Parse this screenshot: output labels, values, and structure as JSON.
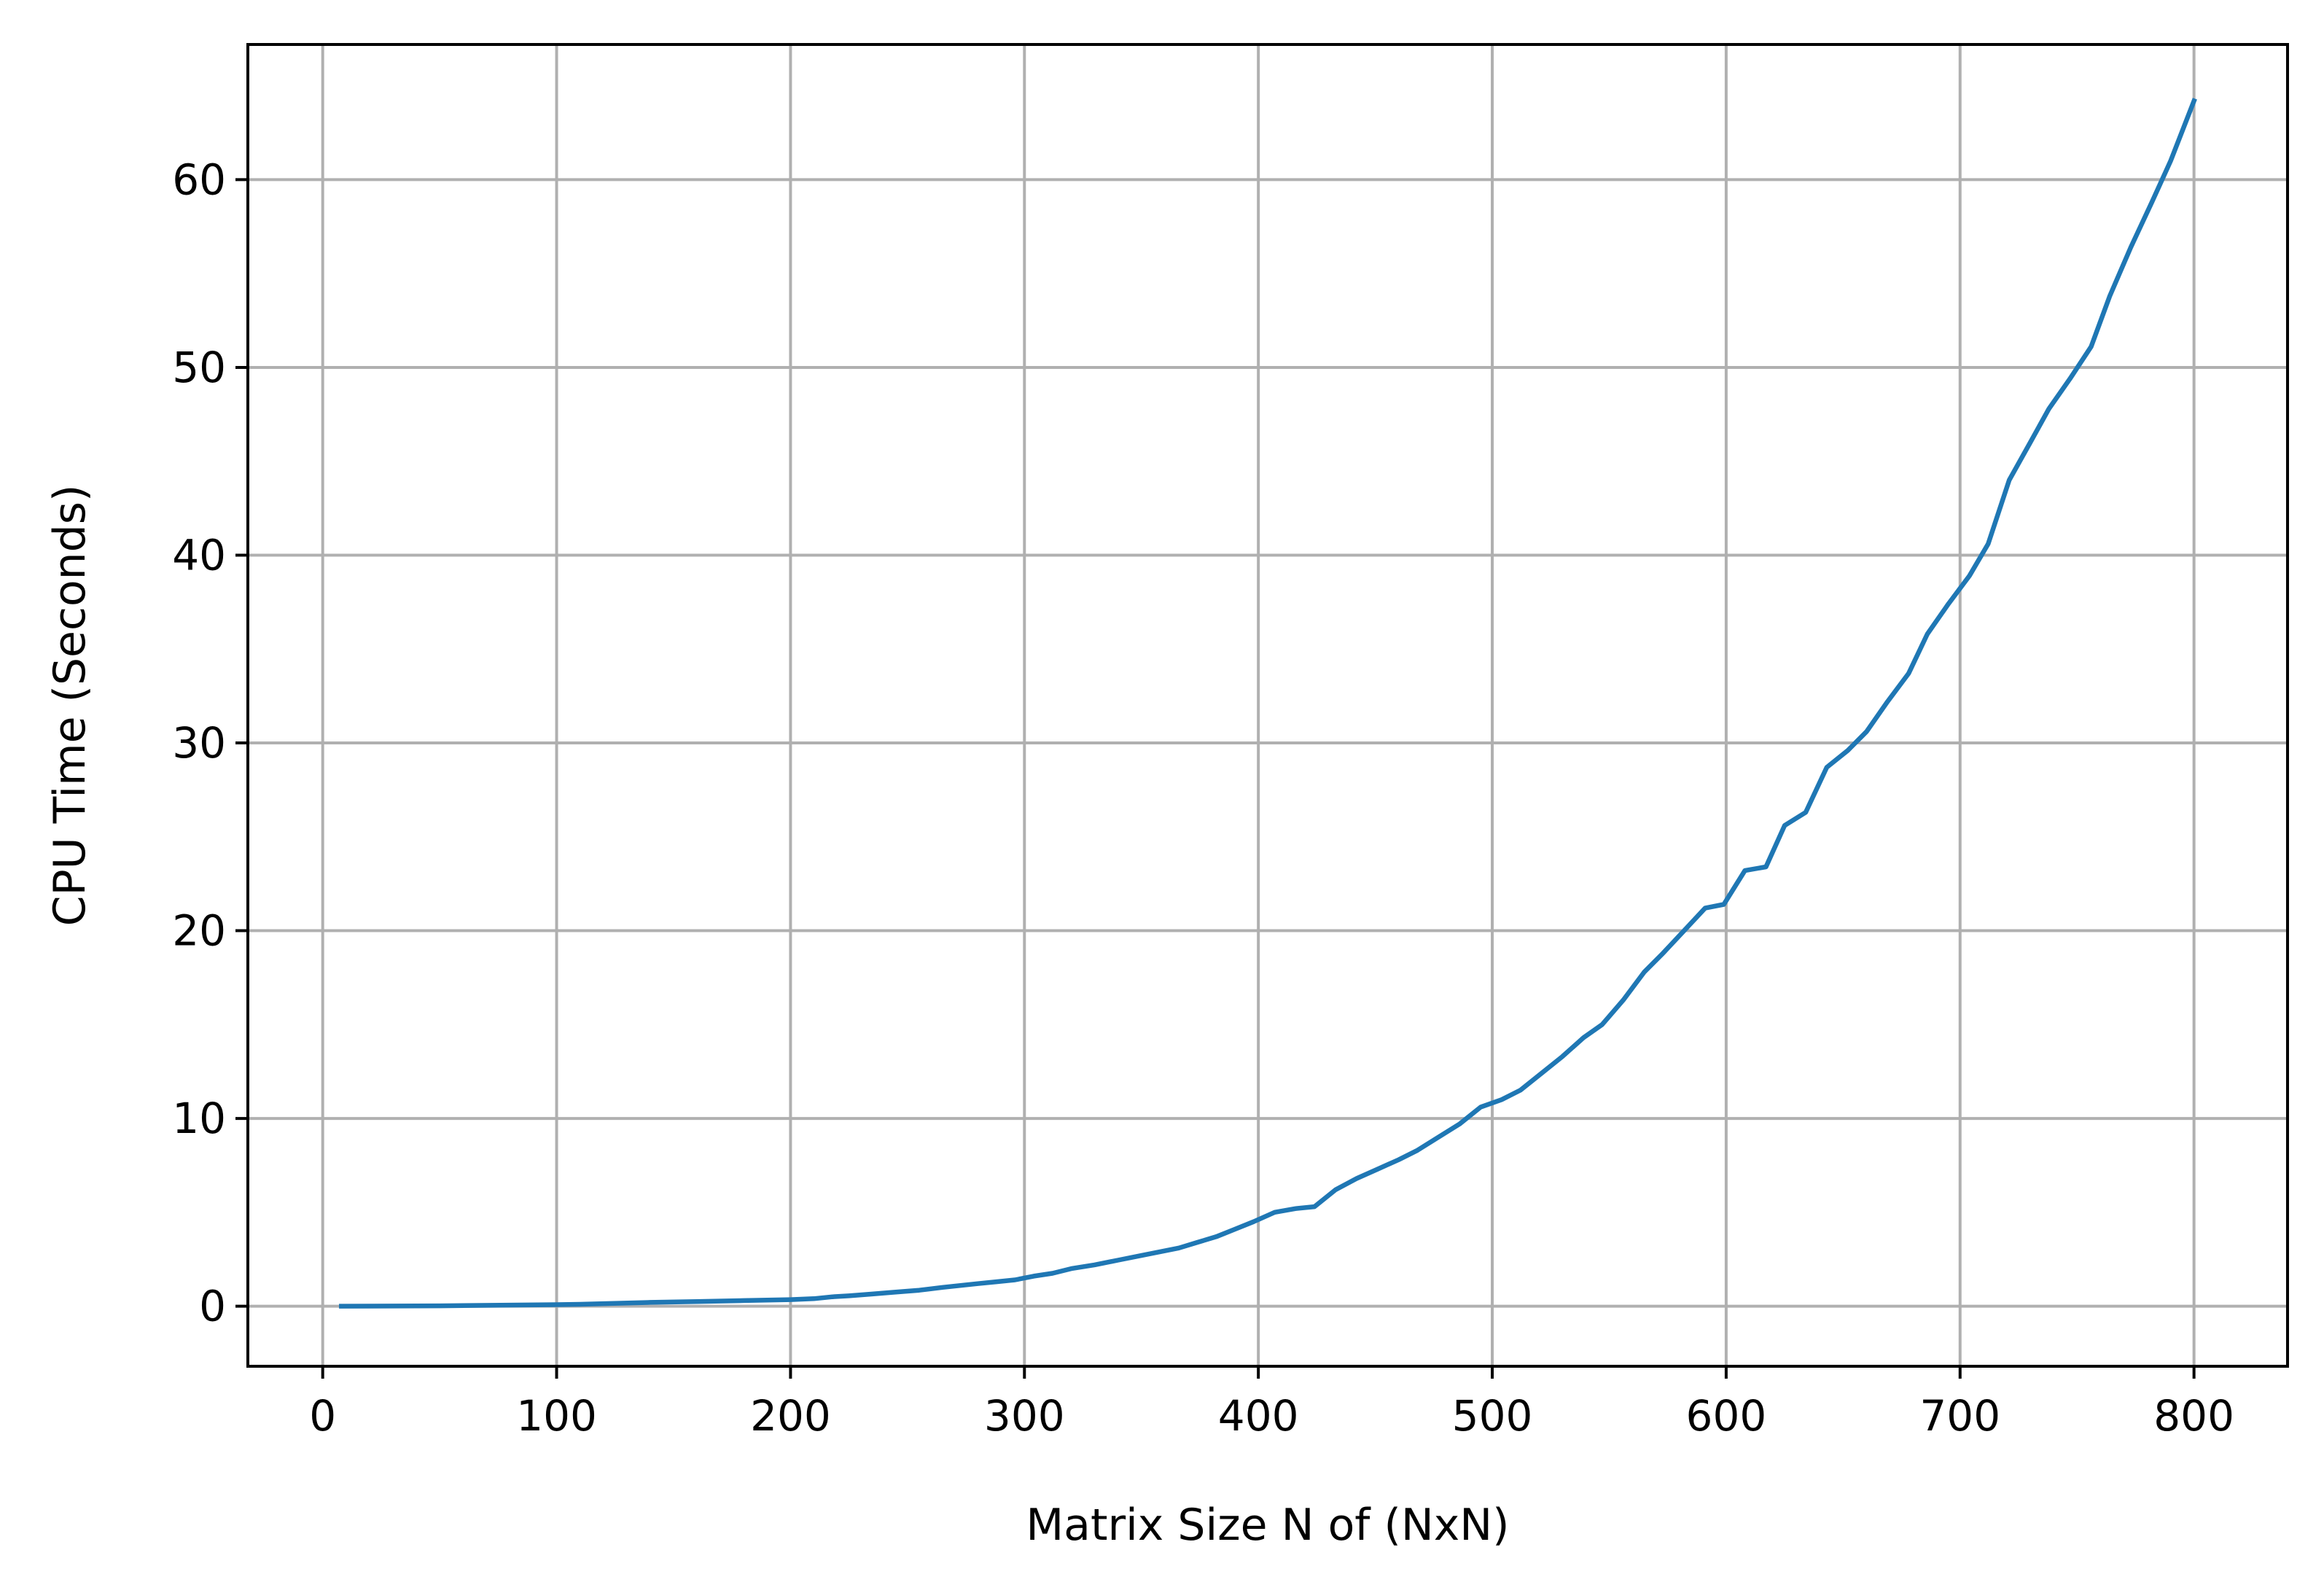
{
  "chart_data": {
    "type": "line",
    "title": "",
    "xlabel": "Matrix Size N of (NxN)",
    "ylabel": "CPU Time (Seconds)",
    "xlim": [
      -32,
      840
    ],
    "ylim": [
      -3.2,
      67.2
    ],
    "xticks": [
      0,
      100,
      200,
      300,
      400,
      500,
      600,
      700,
      800
    ],
    "yticks": [
      0,
      10,
      20,
      30,
      40,
      50,
      60
    ],
    "grid": true,
    "legend": "none",
    "series": [
      {
        "color": "#1f77b4",
        "x": [
          8,
          50,
          100,
          110,
          140,
          160,
          180,
          200,
          210,
          218,
          225,
          235,
          245,
          255,
          265,
          280,
          288,
          296,
          304,
          312,
          320,
          330,
          340,
          350,
          358,
          366,
          374,
          382,
          390,
          398,
          407,
          416,
          424,
          433,
          442,
          451,
          460,
          468,
          477,
          486,
          495,
          504,
          512,
          521,
          530,
          539,
          547,
          556,
          565,
          573,
          582,
          591,
          599,
          608,
          617,
          625,
          634,
          643,
          652,
          660,
          669,
          678,
          686,
          695,
          704,
          712,
          721,
          730,
          738,
          747,
          756,
          764,
          773,
          782,
          790,
          800
        ],
        "y": [
          0,
          0.02,
          0.08,
          0.1,
          0.2,
          0.25,
          0.3,
          0.35,
          0.4,
          0.5,
          0.55,
          0.65,
          0.75,
          0.85,
          1.0,
          1.2,
          1.3,
          1.4,
          1.6,
          1.75,
          2.0,
          2.2,
          2.45,
          2.7,
          2.9,
          3.1,
          3.4,
          3.7,
          4.1,
          4.5,
          5.0,
          5.2,
          5.3,
          6.2,
          6.8,
          7.3,
          7.8,
          8.3,
          9.0,
          9.7,
          10.6,
          11.0,
          11.5,
          12.4,
          13.3,
          14.3,
          15.0,
          16.3,
          17.8,
          18.8,
          20.0,
          21.2,
          21.4,
          23.2,
          23.4,
          25.6,
          26.3,
          28.7,
          29.6,
          30.6,
          32.2,
          33.7,
          35.8,
          37.4,
          38.9,
          40.6,
          44.0,
          46.0,
          47.8,
          49.4,
          51.1,
          53.8,
          56.4,
          58.8,
          61.0,
          64.2
        ]
      }
    ]
  }
}
